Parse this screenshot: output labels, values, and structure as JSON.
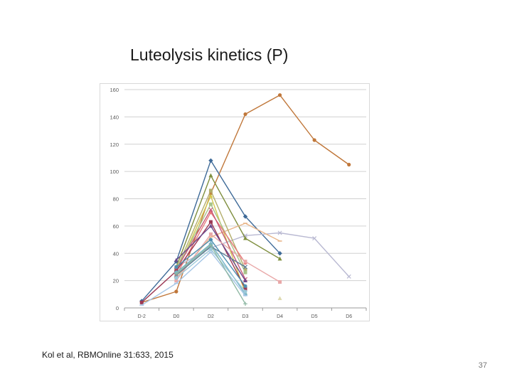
{
  "slide": {
    "title": "Luteolysis kinetics (P)",
    "citation": "Kol et al, RBMOnline 31:633, 2015",
    "page_number": "37"
  },
  "chart_data": {
    "type": "line",
    "title": "",
    "xlabel": "",
    "ylabel": "",
    "categories": [
      "D-2",
      "D0",
      "D2",
      "D3",
      "D4",
      "D5",
      "D6"
    ],
    "ylim": [
      0,
      160
    ],
    "yticks": [
      0,
      20,
      40,
      60,
      80,
      100,
      120,
      140,
      160
    ],
    "grid": true,
    "legend": "none",
    "series": [
      {
        "color": "#c0773a",
        "marker": "circle",
        "values": [
          4,
          12,
          84,
          142,
          156,
          123,
          105
        ]
      },
      {
        "color": "#3e6a98",
        "marker": "diamond",
        "values": [
          5,
          34,
          108,
          67,
          40,
          null,
          null
        ]
      },
      {
        "color": "#b9b9d2",
        "marker": "x",
        "values": [
          null,
          30,
          44,
          53,
          55,
          51,
          23
        ]
      },
      {
        "color": "#7f8f3f",
        "marker": "triangle",
        "values": [
          null,
          30,
          97,
          51,
          36,
          null,
          null
        ]
      },
      {
        "color": "#e9b68a",
        "marker": "dash",
        "values": [
          null,
          22,
          52,
          62,
          49,
          null,
          null
        ]
      },
      {
        "color": "#b3ae6c",
        "marker": "square",
        "values": [
          null,
          28,
          86,
          28,
          null,
          null,
          null
        ]
      },
      {
        "color": "#d4c84e",
        "marker": "triangle",
        "values": [
          null,
          26,
          82,
          11,
          null,
          null,
          null
        ]
      },
      {
        "color": "#a8c38a",
        "marker": "square",
        "values": [
          null,
          28,
          76,
          26,
          null,
          null,
          null
        ]
      },
      {
        "color": "#e87b7b",
        "marker": "circle",
        "values": [
          null,
          24,
          70,
          33,
          null,
          null,
          null
        ]
      },
      {
        "color": "#c65a78",
        "marker": "x",
        "values": [
          null,
          28,
          72,
          21,
          null,
          null,
          null
        ]
      },
      {
        "color": "#9c3a56",
        "marker": "square",
        "values": [
          4,
          27,
          63,
          14,
          null,
          null,
          null
        ]
      },
      {
        "color": "#6b4a8c",
        "marker": "triangle",
        "values": [
          null,
          35,
          60,
          20,
          null,
          null,
          null
        ]
      },
      {
        "color": "#e9a8a8",
        "marker": "square",
        "values": [
          null,
          20,
          54,
          34,
          19,
          null,
          null
        ]
      },
      {
        "color": "#4e8fb0",
        "marker": "circle",
        "values": [
          null,
          30,
          50,
          16,
          null,
          null,
          null
        ]
      },
      {
        "color": "#78b6c8",
        "marker": "diamond",
        "values": [
          null,
          26,
          47,
          10,
          null,
          null,
          null
        ]
      },
      {
        "color": "#5e7c96",
        "marker": "x",
        "values": [
          null,
          24,
          45,
          30,
          null,
          null,
          null
        ]
      },
      {
        "color": "#9cc9d9",
        "marker": "circle",
        "values": [
          null,
          22,
          43,
          12,
          null,
          null,
          null
        ]
      },
      {
        "color": "#a6c6e6",
        "marker": "dash",
        "values": [
          2,
          18,
          41,
          9,
          null,
          null,
          null
        ]
      },
      {
        "color": "#8fb8a4",
        "marker": "plus",
        "values": [
          null,
          25,
          46,
          3,
          null,
          null,
          null
        ]
      },
      {
        "color": "#dedab0",
        "marker": "triangle",
        "values": [
          null,
          null,
          null,
          null,
          7,
          null,
          null
        ]
      }
    ]
  }
}
